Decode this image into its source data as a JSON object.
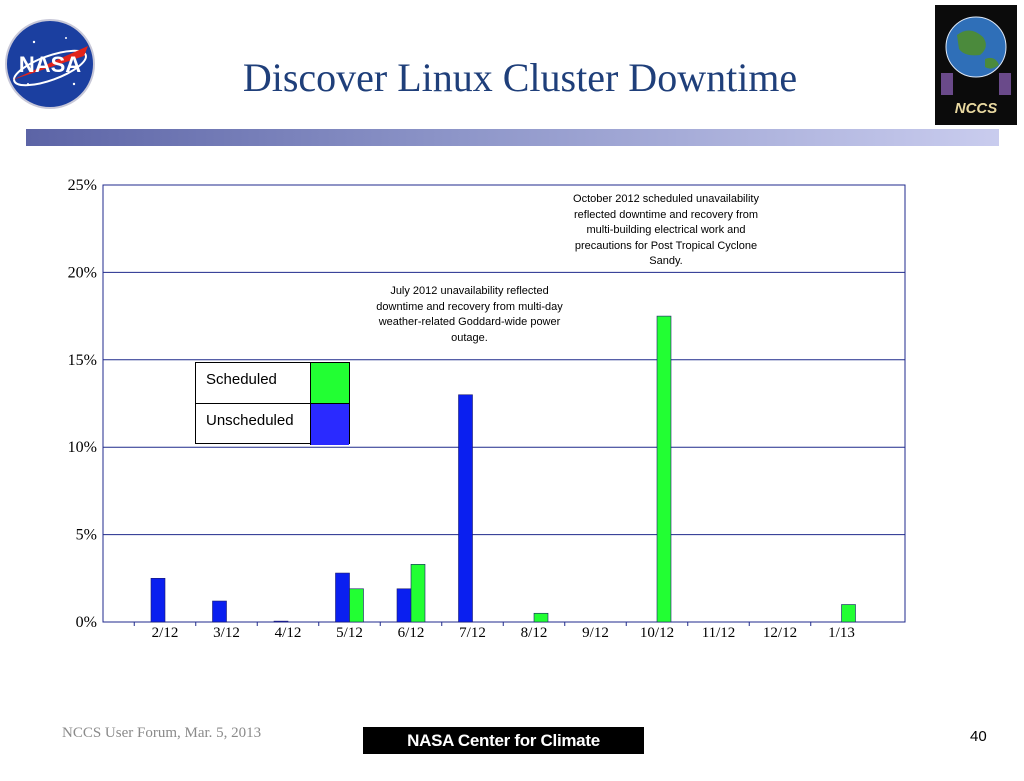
{
  "slide": {
    "title": "Discover Linux Cluster Downtime",
    "footer_left": "NCCS User Forum, Mar. 5, 2013",
    "footer_logo_text": "NASA Center for Climate Simulation",
    "page_number": "40",
    "nasa_logo_text": "NASA",
    "nccs_logo_text": "NCCS"
  },
  "legend": {
    "scheduled_label": "Scheduled",
    "unscheduled_label": "Unscheduled"
  },
  "annotations": {
    "july": "July 2012 unavailability reflected downtime and recovery from multi-day weather-related Goddard-wide power outage.",
    "october": "October 2012 scheduled unavailability reflected downtime and recovery from multi-building electrical work and precautions for Post Tropical Cyclone Sandy."
  },
  "colors": {
    "scheduled": "#22ff33",
    "unscheduled": "#0a1ff0",
    "gridline": "#1f2a8c",
    "title": "#1f3f7a"
  },
  "chart_data": {
    "type": "bar",
    "title": "",
    "xlabel": "",
    "ylabel": "",
    "categories": [
      "2/12",
      "3/12",
      "4/12",
      "5/12",
      "6/12",
      "7/12",
      "8/12",
      "9/12",
      "10/12",
      "11/12",
      "12/12",
      "1/13"
    ],
    "series": [
      {
        "name": "Unscheduled",
        "color": "#0a1ff0",
        "values": [
          2.5,
          1.2,
          0.05,
          2.8,
          1.9,
          13.0,
          0,
          0,
          0,
          0,
          0,
          0
        ]
      },
      {
        "name": "Scheduled",
        "color": "#22ff33",
        "values": [
          0,
          0,
          0,
          1.9,
          3.3,
          0,
          0.5,
          0,
          17.5,
          0,
          0,
          1.0
        ]
      }
    ],
    "ylim": [
      0,
      25
    ],
    "yticks": [
      "0%",
      "5%",
      "10%",
      "15%",
      "20%",
      "25%"
    ],
    "ytick_values": [
      0,
      5,
      10,
      15,
      20,
      25
    ],
    "grid": true,
    "legend_position": "upper-left"
  }
}
